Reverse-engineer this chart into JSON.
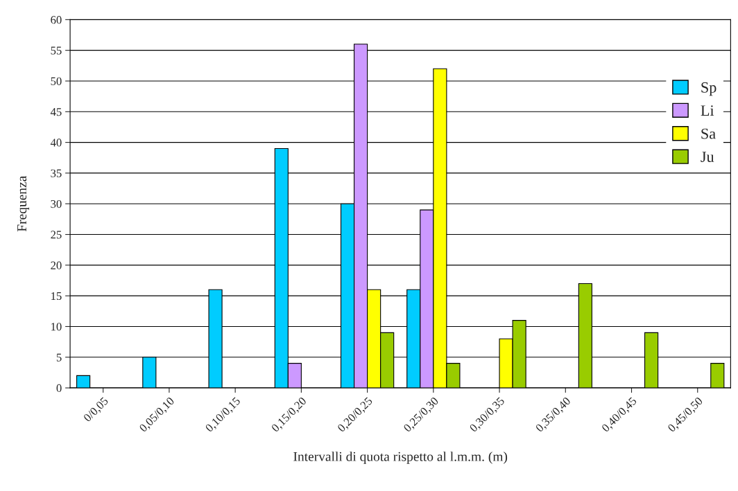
{
  "chart_data": {
    "type": "bar",
    "xlabel": "Intervalli di quota rispetto al l.m.m. (m)",
    "ylabel": "Frequenza",
    "categories": [
      "0/0,05",
      "0,05/0,10",
      "0,10/0,15",
      "0,15/0,20",
      "0,20/0,25",
      "0,25/0,30",
      "0,30/0,35",
      "0,35/0,40",
      "0,40/0,45",
      "0,45/0,50"
    ],
    "series": [
      {
        "name": "Sp",
        "color": "#00ccff",
        "values": [
          2,
          5,
          16,
          39,
          30,
          16,
          null,
          null,
          null,
          null
        ]
      },
      {
        "name": "Li",
        "color": "#cc99ff",
        "values": [
          null,
          null,
          null,
          4,
          56,
          29,
          null,
          null,
          null,
          null
        ]
      },
      {
        "name": "Sa",
        "color": "#ffff00",
        "values": [
          null,
          null,
          null,
          null,
          16,
          52,
          8,
          null,
          null,
          null
        ]
      },
      {
        "name": "Ju",
        "color": "#99cc00",
        "values": [
          null,
          null,
          null,
          null,
          9,
          4,
          11,
          17,
          9,
          4
        ]
      }
    ],
    "ylim": [
      0,
      60
    ],
    "yticks": [
      0,
      5,
      10,
      15,
      20,
      25,
      30,
      35,
      40,
      45,
      50,
      55,
      60
    ],
    "grid": "y",
    "legend": "right"
  }
}
